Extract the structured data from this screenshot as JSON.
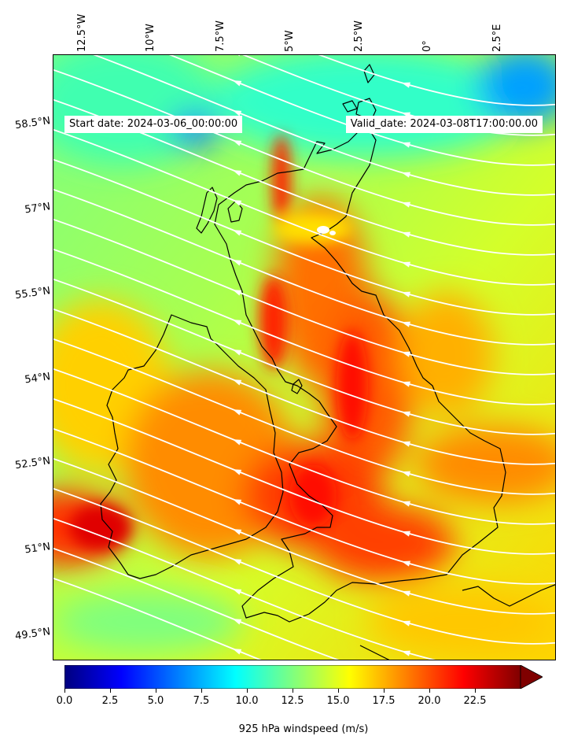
{
  "map": {
    "start_date": "Start date: 2024-03-06_00:00:00",
    "valid_date": "Valid_date: 2024-03-08T17:00:00.00",
    "longitude_labels": [
      "12.5°W",
      "10°W",
      "7.5°W",
      "5°W",
      "2.5°W",
      "0°",
      "2.5°E"
    ],
    "latitude_labels": [
      "58.5°N",
      "57°N",
      "55.5°N",
      "54°N",
      "52.5°N",
      "51°N",
      "49.5°N"
    ],
    "field": "925 hPa windspeed",
    "colormap": "jet",
    "streamline_color": "#ffffff",
    "coastline_color": "#000000"
  },
  "colorbar": {
    "label": "925 hPa windspeed (m/s)",
    "ticks": [
      "0.0",
      "2.5",
      "5.0",
      "7.5",
      "10.0",
      "12.5",
      "15.0",
      "17.5",
      "20.0",
      "22.5"
    ],
    "min": 0,
    "max": 25,
    "extend": "max",
    "colors": [
      "#00007f",
      "#0000ff",
      "#007fff",
      "#00ffff",
      "#7fff7f",
      "#ffff00",
      "#ff7f00",
      "#ff0000",
      "#7f0000"
    ]
  }
}
